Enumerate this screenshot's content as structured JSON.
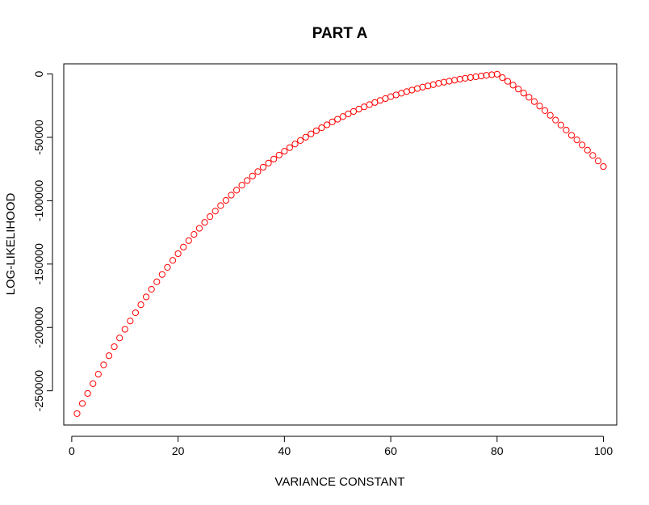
{
  "chart_data": {
    "type": "scatter",
    "title": "PART A",
    "xlabel": "VARIANCE CONSTANT",
    "ylabel": "LOG-LIKELIHOOD",
    "xlim": [
      -1.5,
      102.5
    ],
    "ylim": [
      -277000,
      8000
    ],
    "xticks": [
      0,
      20,
      40,
      60,
      80,
      100
    ],
    "yticks": [
      0,
      -50000,
      -100000,
      -150000,
      -200000,
      -250000
    ],
    "xtick_labels": [
      "0",
      "20",
      "40",
      "60",
      "80",
      "100"
    ],
    "ytick_labels": [
      "0",
      "-50000",
      "-100000",
      "-150000",
      "-200000",
      "-250000"
    ],
    "grid": false,
    "marker": "open-circle",
    "point_color": "#ff0000",
    "series": [
      {
        "x": [
          1,
          2,
          3,
          4,
          5,
          6,
          7,
          8,
          9,
          10,
          11,
          12,
          13,
          14,
          15,
          16,
          17,
          18,
          19,
          20,
          21,
          22,
          23,
          24,
          25,
          26,
          27,
          28,
          29,
          30,
          31,
          32,
          33,
          34,
          35,
          36,
          37,
          38,
          39,
          40,
          41,
          42,
          43,
          44,
          45,
          46,
          47,
          48,
          49,
          50,
          51,
          52,
          53,
          54,
          55,
          56,
          57,
          58,
          59,
          60,
          61,
          62,
          63,
          64,
          65,
          66,
          67,
          68,
          69,
          70,
          71,
          72,
          73,
          74,
          75,
          76,
          77,
          78,
          79,
          80,
          81,
          82,
          83,
          84,
          85,
          86,
          87,
          88,
          89,
          90,
          91,
          92,
          93,
          94,
          95,
          96,
          97,
          98,
          99,
          100
        ],
        "y": [
          -268000,
          -260000,
          -252100,
          -244400,
          -236900,
          -229500,
          -222300,
          -215200,
          -208300,
          -201500,
          -194900,
          -188400,
          -182100,
          -175900,
          -169900,
          -164000,
          -158200,
          -152600,
          -147100,
          -141800,
          -136600,
          -131500,
          -126600,
          -121800,
          -117100,
          -112600,
          -108200,
          -103900,
          -99700,
          -95600,
          -91700,
          -87800,
          -84100,
          -80500,
          -77000,
          -73600,
          -70300,
          -67100,
          -64000,
          -61000,
          -58100,
          -55300,
          -52500,
          -49900,
          -47300,
          -44800,
          -42400,
          -40100,
          -37800,
          -35700,
          -33600,
          -31500,
          -29600,
          -27700,
          -25900,
          -24200,
          -22500,
          -20900,
          -19400,
          -17900,
          -16500,
          -15200,
          -13900,
          -12700,
          -11500,
          -10400,
          -9400,
          -8400,
          -7400,
          -6500,
          -5700,
          -4900,
          -4100,
          -3400,
          -2800,
          -2200,
          -1600,
          -1100,
          -600,
          -200,
          -2900,
          -5800,
          -8800,
          -11900,
          -15100,
          -18400,
          -21800,
          -25300,
          -28900,
          -32600,
          -36400,
          -40300,
          -44300,
          -48400,
          -52000,
          -56000,
          -60100,
          -64300,
          -68600,
          -73000
        ]
      }
    ]
  }
}
